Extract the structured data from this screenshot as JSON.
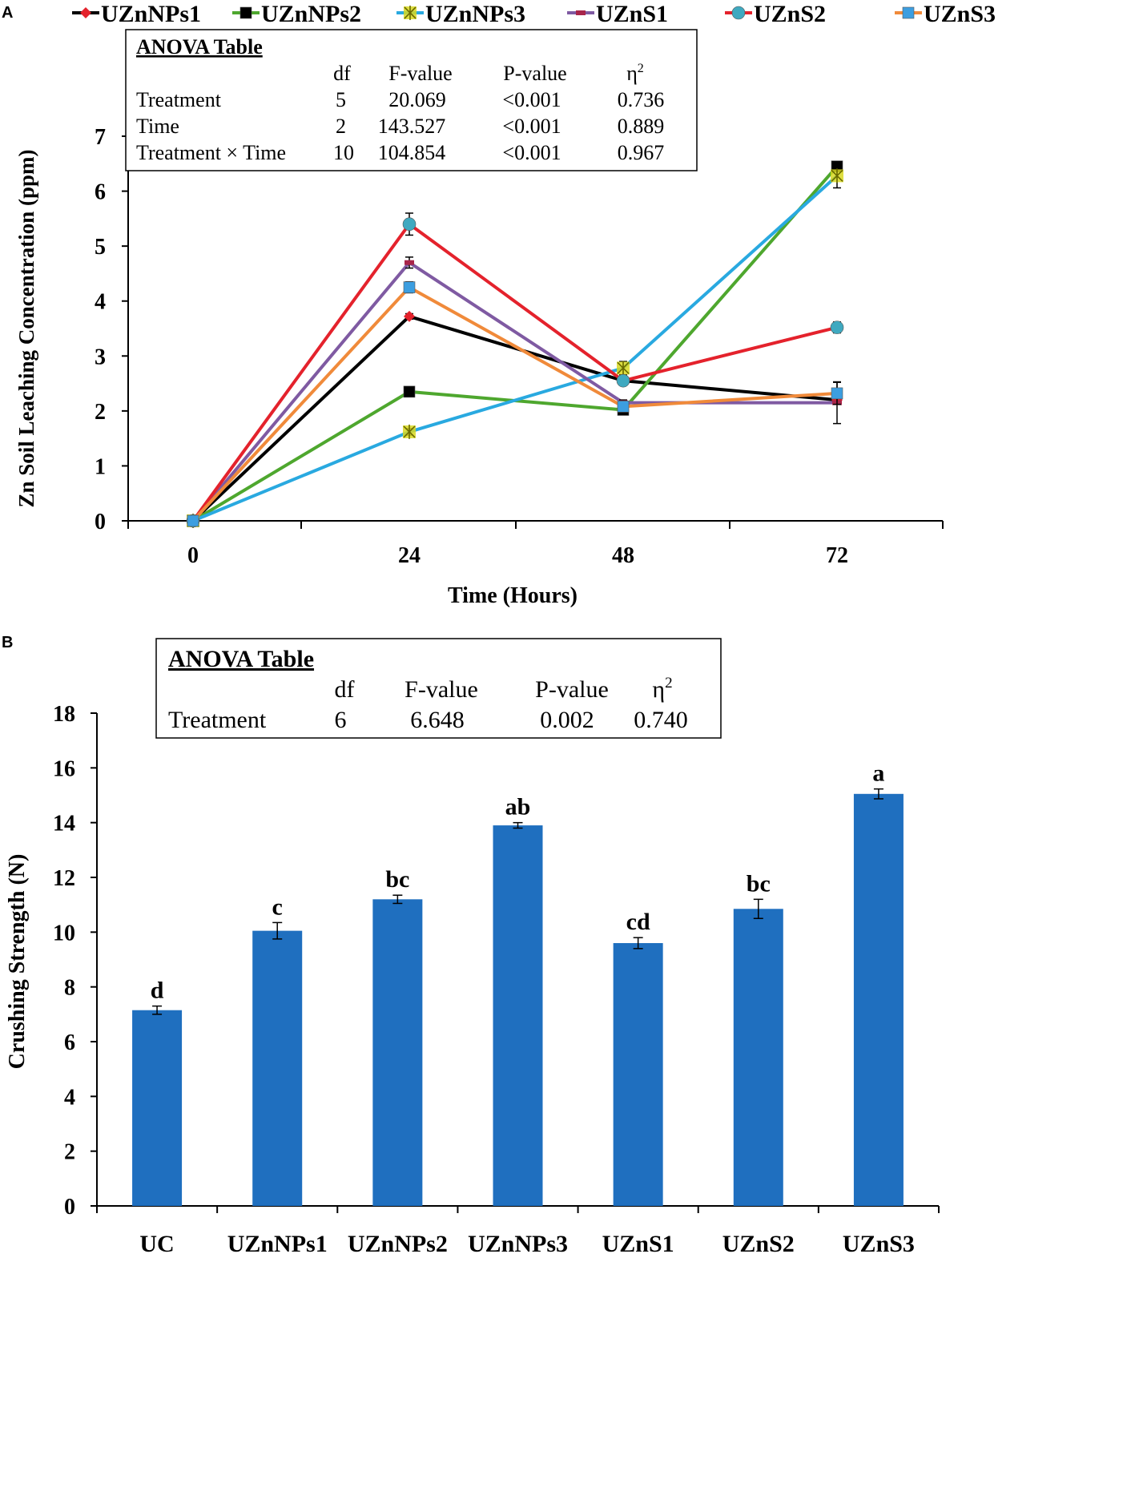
{
  "panels": [
    {
      "letter": "A"
    },
    {
      "letter": "B"
    }
  ],
  "chart_data": [
    {
      "type": "line",
      "panel": "A",
      "title": "",
      "xlabel": "Time (Hours)",
      "ylabel": "Zn Soil Leaching Concentration (ppm)",
      "categories": [
        "0",
        "24",
        "48",
        "72"
      ],
      "ylim": [
        0,
        7
      ],
      "yticks": [
        "0",
        "1",
        "2",
        "3",
        "4",
        "5",
        "6",
        "7"
      ],
      "grid": false,
      "legend_position": "top",
      "series": [
        {
          "name": "UZnNPs1",
          "color": "#000000",
          "marker_color": "#e4222c",
          "marker": "diamond",
          "values": [
            0,
            3.72,
            2.55,
            2.2
          ],
          "errors": [
            0,
            0.05,
            0.05,
            0.05
          ]
        },
        {
          "name": "UZnNPs2",
          "color": "#4ea72e",
          "marker_color": "#000000",
          "marker": "square",
          "values": [
            0,
            2.35,
            2.02,
            6.45
          ],
          "errors": [
            0,
            0.04,
            0.04,
            0.05
          ]
        },
        {
          "name": "UZnNPs3",
          "color": "#29a9e0",
          "marker_color": "#d8d820",
          "marker": "star",
          "values": [
            0,
            1.62,
            2.78,
            6.28
          ],
          "errors": [
            0,
            0.06,
            0.12,
            0.22
          ]
        },
        {
          "name": "UZnS1",
          "color": "#7f5aa2",
          "marker_color": "#a8254a",
          "marker": "bar",
          "values": [
            0,
            4.7,
            2.15,
            2.15
          ],
          "errors": [
            0,
            0.1,
            0.05,
            0.38
          ]
        },
        {
          "name": "UZnS2",
          "color": "#e4222c",
          "marker_color": "#3fa9c0",
          "marker": "circle",
          "values": [
            0,
            5.4,
            2.55,
            3.52
          ],
          "errors": [
            0,
            0.2,
            0.08,
            0.1
          ]
        },
        {
          "name": "UZnS3",
          "color": "#f08a3a",
          "marker_color": "#3c9ee0",
          "marker": "square",
          "values": [
            0,
            4.25,
            2.08,
            2.32
          ],
          "errors": [
            0,
            0.1,
            0.05,
            0.2
          ]
        }
      ],
      "anova": {
        "title": "ANOVA Table",
        "columns": [
          "df",
          "F-value",
          "P-value",
          "η2"
        ],
        "eta_base": "η",
        "eta_sup": "2",
        "rows": [
          {
            "source": "Treatment",
            "df": "5",
            "f": "20.069",
            "p": "<0.001",
            "eta": "0.736"
          },
          {
            "source": "Time",
            "df": "2",
            "f": "143.527",
            "p": "<0.001",
            "eta": "0.889"
          },
          {
            "source": "Treatment × Time",
            "df": "10",
            "f": "104.854",
            "p": "<0.001",
            "eta": "0.967"
          }
        ]
      }
    },
    {
      "type": "bar",
      "panel": "B",
      "title": "",
      "xlabel": "",
      "ylabel": "Crushing Strength (N)",
      "categories": [
        "UC",
        "UZnNPs1",
        "UZnNPs2",
        "UZnNPs3",
        "UZnS1",
        "UZnS2",
        "UZnS3"
      ],
      "values": [
        7.15,
        10.05,
        11.2,
        13.9,
        9.6,
        10.85,
        15.05
      ],
      "errors": [
        0.15,
        0.3,
        0.15,
        0.1,
        0.2,
        0.35,
        0.18
      ],
      "letters": [
        "d",
        "c",
        "bc",
        "ab",
        "cd",
        "bc",
        "a"
      ],
      "ylim": [
        0,
        18
      ],
      "yticks": [
        "0",
        "2",
        "4",
        "6",
        "8",
        "10",
        "12",
        "14",
        "16",
        "18"
      ],
      "bar_color": "#1f6fbf",
      "grid": false,
      "anova": {
        "title": "ANOVA Table",
        "columns": [
          "df",
          "F-value",
          "P-value",
          "η2"
        ],
        "eta_base": "η",
        "eta_sup": "2",
        "rows": [
          {
            "source": "Treatment",
            "df": "6",
            "f": "6.648",
            "p": "0.002",
            "eta": "0.740"
          }
        ]
      }
    }
  ]
}
